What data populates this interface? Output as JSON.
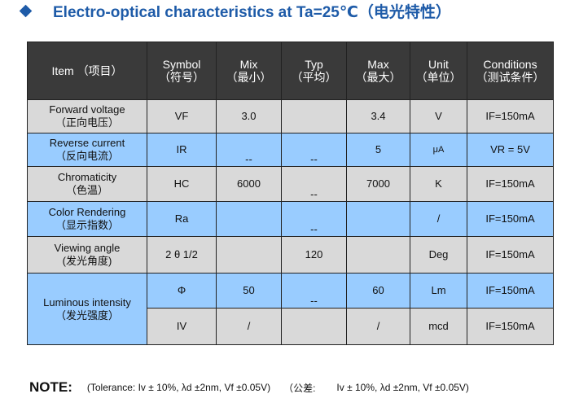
{
  "heading": {
    "title": "Electro-optical characteristics at Ta=25℃（电光特性）",
    "color": "#1e5ba8"
  },
  "table": {
    "headers": [
      {
        "en": "Item",
        "zh": "（项目）"
      },
      {
        "en": "Symbol",
        "zh": "（符号）"
      },
      {
        "en": "Mix",
        "zh": "（最小）"
      },
      {
        "en": "Typ",
        "zh": "（平均）"
      },
      {
        "en": "Max",
        "zh": "（最大）"
      },
      {
        "en": "Unit",
        "zh": "（单位）"
      },
      {
        "en": "Conditions",
        "zh": "（测试条件）"
      }
    ],
    "rows": [
      {
        "item_en": "Forward  voltage",
        "item_zh": "（正向电压）",
        "symbol": "VF",
        "min": "3.0",
        "typ": "",
        "max": "3.4",
        "unit": "V",
        "condition": "IF=150mA"
      },
      {
        "item_en": "Reverse  current",
        "item_zh": "（反向电流）",
        "symbol": "IR",
        "min": "--",
        "typ": "--",
        "max": "5",
        "unit": "μA",
        "condition": "VR = 5V"
      },
      {
        "item_en": "Chromaticity",
        "item_zh": "（色温）",
        "symbol": "HC",
        "min": "6000",
        "typ": "--",
        "max": "7000",
        "unit": "K",
        "condition": "IF=150mA"
      },
      {
        "item_en": "Color  Rendering",
        "item_zh": "（显示指数）",
        "symbol": "Ra",
        "min": "",
        "typ": "--",
        "max": "",
        "unit": "/",
        "condition": "IF=150mA"
      },
      {
        "item_en": "Viewing  angle",
        "item_zh": "(发光角度)",
        "symbol": "2 θ 1/2",
        "min": "",
        "typ": "120",
        "max": "",
        "unit": "Deg",
        "condition": "IF=150mA"
      },
      {
        "item_en": "Luminous  intensity",
        "item_zh": "（发光强度）",
        "symbol": "Φ",
        "min": "50",
        "typ": "--",
        "max": "60",
        "unit": "Lm",
        "condition": "IF=150mA"
      },
      {
        "symbol": "IV",
        "min": "/",
        "typ": "",
        "max": "/",
        "unit": "mcd",
        "condition": "IF=150mA"
      }
    ],
    "colors": {
      "header": "#3a3a3a",
      "gray_row": "#d9d9d9",
      "blue_row": "#99ccff"
    }
  },
  "note": {
    "label": "NOTE:",
    "text_en": "(Tolerance: Iv ± 10%, λd ±2nm, Vf ±0.05V)",
    "text_zh_prefix": "（公差:",
    "text_zh": "Iv ± 10%, λd ±2nm, Vf ±0.05V)"
  }
}
